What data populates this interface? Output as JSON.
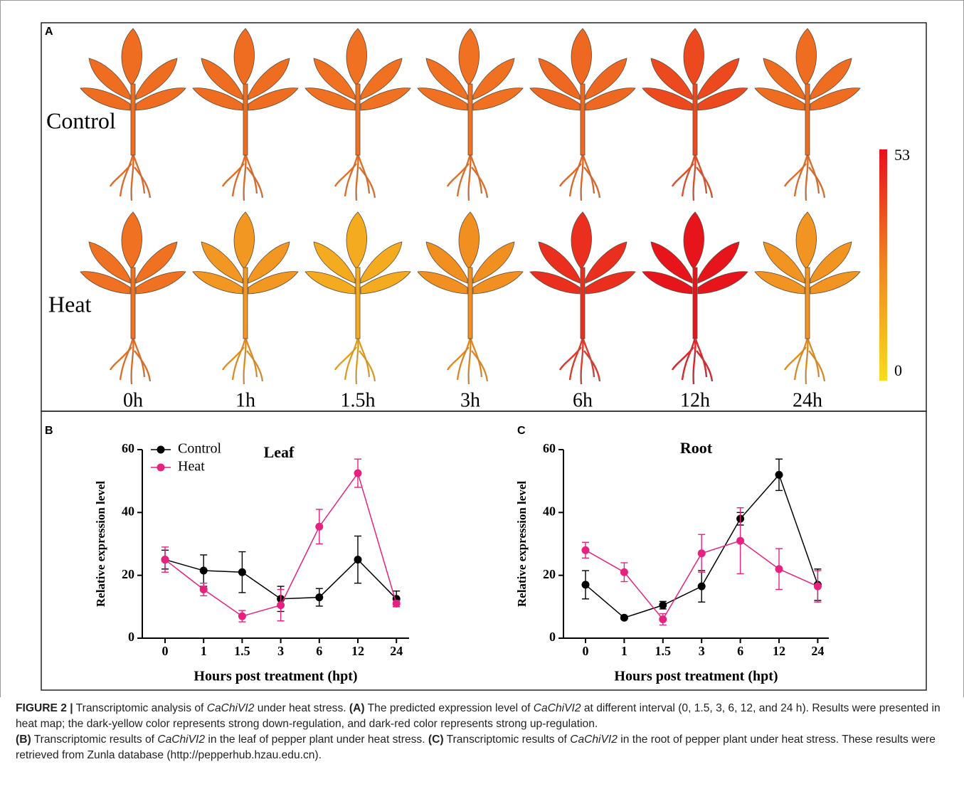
{
  "chart_data": [
    {
      "type": "heatmap",
      "panel": "A",
      "rows": [
        "Control",
        "Heat"
      ],
      "columns": [
        "0h",
        "1h",
        "1.5h",
        "3h",
        "6h",
        "12h",
        "24h"
      ],
      "values": [
        [
          32,
          32,
          31,
          31,
          33,
          40,
          32
        ],
        [
          31,
          21,
          15,
          23,
          46,
          52,
          22
        ]
      ],
      "zlim": [
        0,
        53
      ],
      "zticks": [
        0,
        53
      ],
      "colors": [
        "#f9dc1c",
        "#f08522",
        "#e8101c"
      ]
    },
    {
      "type": "line",
      "panel": "B",
      "title": "Leaf",
      "xlabel": "Hours post treatment (hpt)",
      "ylabel": "Relative expression level",
      "categories": [
        "0",
        "1",
        "1.5",
        "3",
        "6",
        "12",
        "24"
      ],
      "ylim": [
        0,
        60
      ],
      "yticks": [
        0,
        20,
        40,
        60
      ],
      "legend": "upper left",
      "series": [
        {
          "name": "Control",
          "color": "#000000",
          "values": [
            25,
            21.5,
            21,
            12.5,
            13,
            25,
            12.5
          ],
          "errors": [
            3,
            5,
            6.5,
            4,
            2.8,
            7.5,
            2.5
          ]
        },
        {
          "name": "Heat",
          "color": "#e6217f",
          "values": [
            25,
            15.5,
            7,
            10.5,
            35.5,
            52.5,
            11
          ],
          "errors": [
            4,
            2,
            1.8,
            5,
            5.5,
            4.5,
            1
          ]
        }
      ]
    },
    {
      "type": "line",
      "panel": "C",
      "title": "Root",
      "xlabel": "Hours post treatment (hpt)",
      "ylabel": "Relative expression level",
      "categories": [
        "0",
        "1",
        "1.5",
        "3",
        "6",
        "12",
        "24"
      ],
      "ylim": [
        0,
        60
      ],
      "yticks": [
        0,
        20,
        40,
        60
      ],
      "series": [
        {
          "name": "Control",
          "color": "#000000",
          "values": [
            17,
            6.5,
            10.5,
            16.5,
            38,
            52,
            17
          ],
          "errors": [
            4.5,
            0.5,
            1.2,
            5,
            2,
            5,
            5
          ]
        },
        {
          "name": "Heat",
          "color": "#e6217f",
          "values": [
            28,
            21,
            6,
            27,
            31,
            22,
            16.5
          ],
          "errors": [
            2.5,
            3,
            1.8,
            6,
            10.5,
            6.5,
            5
          ]
        }
      ]
    }
  ],
  "caption": [
    [
      {
        "text": "FIGURE 2 |",
        "style": "bold"
      },
      {
        "text": " Transcriptomic analysis of ",
        "style": "plain"
      },
      {
        "text": "CaChiVI2",
        "style": "italic"
      },
      {
        "text": " under heat stress. ",
        "style": "plain"
      },
      {
        "text": "(A)",
        "style": "bold"
      },
      {
        "text": " The predicted expression level of ",
        "style": "plain"
      },
      {
        "text": "CaChiVI2",
        "style": "italic"
      },
      {
        "text": " at different interval (0, 1.5, 3, 6, 12, and 24 h). Results were presented in heat map; the dark-yellow color represents strong down-regulation, and dark-red color represents strong up-regulation.",
        "style": "plain"
      }
    ],
    [
      {
        "text": "(B)",
        "style": "bold"
      },
      {
        "text": " Transcriptomic results of ",
        "style": "plain"
      },
      {
        "text": "CaChiVI2",
        "style": "italic"
      },
      {
        "text": " in the leaf of pepper plant under heat stress. ",
        "style": "plain"
      },
      {
        "text": "(C)",
        "style": "bold"
      },
      {
        "text": " Transcriptomic results of ",
        "style": "plain"
      },
      {
        "text": "CaChiVI2",
        "style": "italic"
      },
      {
        "text": " in the root of pepper plant under heat stress. These results were retrieved from Zunla database (http://pepperhub.hzau.edu.cn).",
        "style": "plain"
      }
    ]
  ]
}
